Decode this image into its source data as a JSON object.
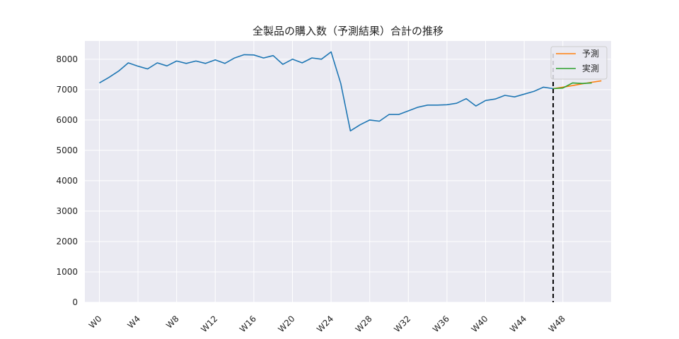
{
  "chart_data": {
    "type": "line",
    "title": "全製品の購入数（予測結果）合計の推移",
    "xlabel": "",
    "ylabel": "",
    "ylim": [
      0,
      8600
    ],
    "yticks": [
      0,
      1000,
      2000,
      3000,
      4000,
      5000,
      6000,
      7000,
      8000
    ],
    "xticks": [
      "W0",
      "W4",
      "W8",
      "W12",
      "W16",
      "W20",
      "W24",
      "W28",
      "W32",
      "W36",
      "W40",
      "W44",
      "W48"
    ],
    "grid": true,
    "legend_position": "top-right",
    "forecast_start": "W47",
    "colors": {
      "history": "#1f77b4",
      "forecast": "#ff7f0e",
      "actual": "#2ca02c",
      "plot_background": "#eaeaf2",
      "divider": "#000000"
    },
    "series": [
      {
        "values": [
          7220,
          7400,
          7610,
          7880,
          7770,
          7680,
          7880,
          7780,
          7940,
          7860,
          7940,
          7860,
          7980,
          7860,
          8040,
          8150,
          8140,
          8040,
          8120,
          7830,
          8000,
          7880,
          8040,
          8000,
          8240,
          7200,
          5640,
          5840,
          6000,
          5960,
          6180,
          6180,
          6300,
          6420,
          6490,
          6490,
          6500,
          6550,
          6700,
          6460,
          6640,
          6690,
          6810,
          6760,
          6850,
          6940,
          7080,
          7030
        ],
        "x_start": 0
      },
      {
        "name": "予測",
        "values": [
          7030,
          7080,
          7130,
          7190,
          7240,
          7290
        ],
        "x_start": 47
      },
      {
        "name": "実測",
        "values": [
          7030,
          7050,
          7220,
          7200,
          7220
        ],
        "x_start": 47
      }
    ]
  }
}
